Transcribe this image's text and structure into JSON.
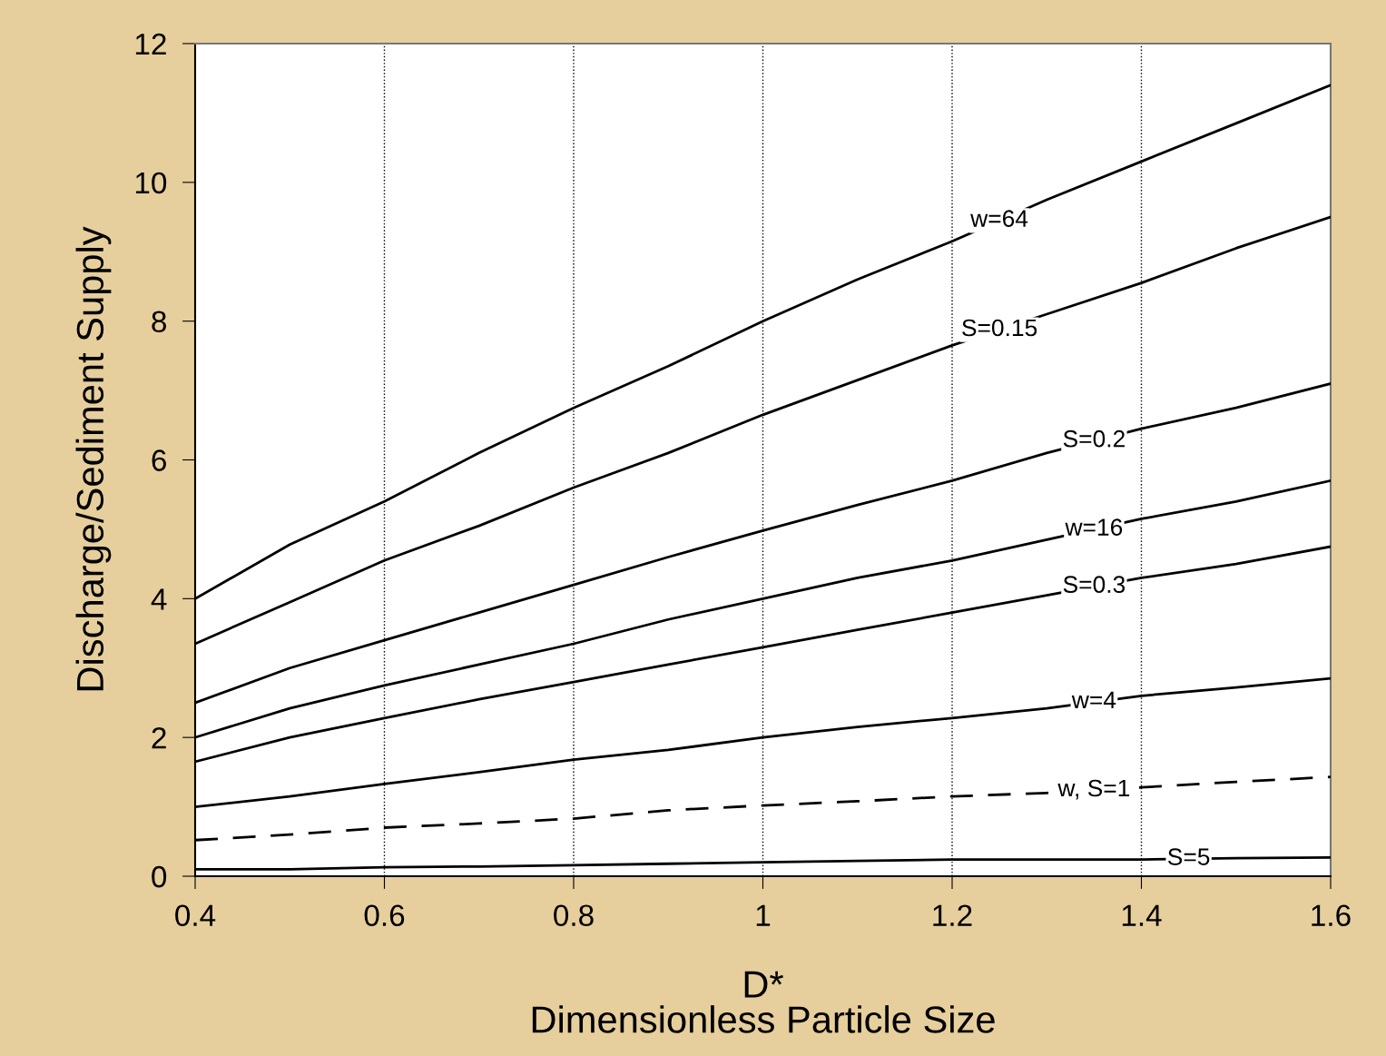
{
  "chart_data": {
    "type": "line",
    "xlabel": "D*\nDimensionless Particle Size",
    "ylabel": "Discharge/Sediment Supply",
    "x": [
      0.4,
      0.5,
      0.6,
      0.7,
      0.8,
      0.9,
      1,
      1.1,
      1.2,
      1.3,
      1.4,
      1.5,
      1.6
    ],
    "series": [
      {
        "name": "w=64",
        "color": "#000000",
        "values": [
          4.0,
          4.78,
          5.4,
          6.1,
          6.75,
          7.35,
          8.0,
          8.6,
          9.15,
          9.75,
          10.3,
          10.85,
          11.4
        ]
      },
      {
        "name": "S=0.15",
        "color": "#000000",
        "values": [
          3.35,
          3.95,
          4.55,
          5.05,
          5.6,
          6.1,
          6.65,
          7.15,
          7.65,
          8.1,
          8.55,
          9.05,
          9.5
        ]
      },
      {
        "name": "S=0.2",
        "color": "#000000",
        "values": [
          2.5,
          3.0,
          3.4,
          3.8,
          4.2,
          4.6,
          4.98,
          5.35,
          5.7,
          6.1,
          6.45,
          6.75,
          7.1
        ]
      },
      {
        "name": "w=16",
        "color": "#000000",
        "values": [
          2.0,
          2.42,
          2.75,
          3.05,
          3.35,
          3.7,
          4.0,
          4.3,
          4.55,
          4.85,
          5.15,
          5.4,
          5.7
        ]
      },
      {
        "name": "S=0.3",
        "color": "#000000",
        "values": [
          1.65,
          2.0,
          2.28,
          2.55,
          2.8,
          3.05,
          3.3,
          3.55,
          3.8,
          4.05,
          4.3,
          4.5,
          4.75
        ]
      },
      {
        "name": "w=4",
        "color": "#000000",
        "values": [
          1.0,
          1.15,
          1.33,
          1.5,
          1.68,
          1.82,
          2.0,
          2.15,
          2.28,
          2.42,
          2.6,
          2.72,
          2.85
        ]
      },
      {
        "name": "w, S=1",
        "color": "#000000",
        "line_style": "dashed",
        "values": [
          0.52,
          0.6,
          0.7,
          0.76,
          0.83,
          0.95,
          1.02,
          1.08,
          1.15,
          1.2,
          1.28,
          1.36,
          1.43
        ]
      },
      {
        "name": "S=5",
        "color": "#000000",
        "values": [
          0.1,
          0.1,
          0.13,
          0.14,
          0.16,
          0.18,
          0.2,
          0.22,
          0.24,
          0.24,
          0.24,
          0.26,
          0.27
        ]
      }
    ],
    "xlim": [
      0.4,
      1.6
    ],
    "xticks": [
      0.4,
      0.6,
      0.8,
      1,
      1.2,
      1.4,
      1.6
    ],
    "ylim": [
      0,
      12
    ],
    "yticks": [
      0,
      2,
      4,
      6,
      8,
      10,
      12
    ],
    "grid": "x",
    "marker": "none",
    "line_style": "solid",
    "legend": false
  }
}
